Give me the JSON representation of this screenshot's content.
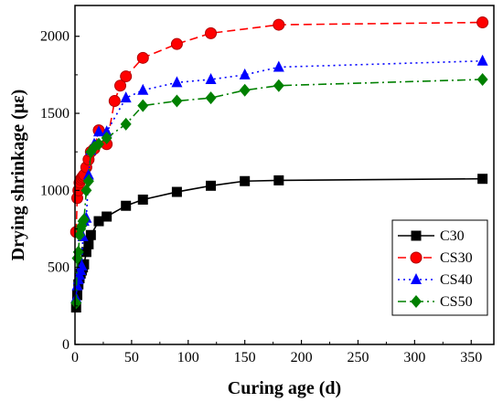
{
  "chart_data": {
    "type": "line",
    "title": "",
    "xlabel": "Curing age (d)",
    "ylabel": "Drying shrinkage (με)",
    "xlim": [
      0,
      370
    ],
    "ylim": [
      0,
      2200
    ],
    "xticks": [
      0,
      50,
      100,
      150,
      200,
      250,
      300,
      350
    ],
    "yticks": [
      0,
      500,
      1000,
      1500,
      2000
    ],
    "grid": false,
    "legend_position": "bottom-right",
    "series": [
      {
        "name": "C30",
        "color": "#000000",
        "marker": "square",
        "dash": "solid",
        "x": [
          1,
          2,
          3,
          4,
          5,
          6,
          7,
          8,
          10,
          12,
          14,
          21,
          28,
          45,
          60,
          90,
          120,
          150,
          180,
          360
        ],
        "y": [
          240,
          320,
          390,
          430,
          460,
          480,
          500,
          520,
          600,
          650,
          710,
          800,
          830,
          900,
          940,
          990,
          1030,
          1060,
          1065,
          1075
        ]
      },
      {
        "name": "CS30",
        "color": "#ff0000",
        "marker": "circle",
        "dash": "dash",
        "x": [
          1,
          2,
          3,
          4,
          5,
          6,
          7,
          8,
          10,
          12,
          14,
          17,
          21,
          28,
          35,
          40,
          45,
          60,
          90,
          120,
          180,
          360
        ],
        "y": [
          730,
          950,
          1000,
          1050,
          1070,
          1080,
          1090,
          1100,
          1150,
          1200,
          1250,
          1270,
          1390,
          1300,
          1580,
          1680,
          1740,
          1860,
          1950,
          2020,
          2075,
          2090
        ]
      },
      {
        "name": "CS40",
        "color": "#0000ff",
        "marker": "triangle",
        "dash": "dot",
        "x": [
          1,
          2,
          3,
          4,
          5,
          6,
          7,
          8,
          10,
          12,
          14,
          17,
          21,
          28,
          45,
          60,
          90,
          120,
          150,
          180,
          360
        ],
        "y": [
          300,
          380,
          420,
          450,
          480,
          510,
          700,
          800,
          820,
          1100,
          1260,
          1300,
          1380,
          1380,
          1600,
          1650,
          1700,
          1720,
          1750,
          1800,
          1840
        ]
      },
      {
        "name": "CS50",
        "color": "#008000",
        "marker": "diamond",
        "dash": "dashdot",
        "x": [
          1,
          2,
          3,
          4,
          5,
          6,
          7,
          8,
          10,
          12,
          14,
          17,
          21,
          28,
          45,
          60,
          90,
          120,
          150,
          180,
          360
        ],
        "y": [
          270,
          560,
          600,
          710,
          750,
          770,
          800,
          810,
          1000,
          1060,
          1250,
          1280,
          1300,
          1340,
          1430,
          1550,
          1580,
          1600,
          1650,
          1680,
          1720
        ]
      }
    ]
  }
}
